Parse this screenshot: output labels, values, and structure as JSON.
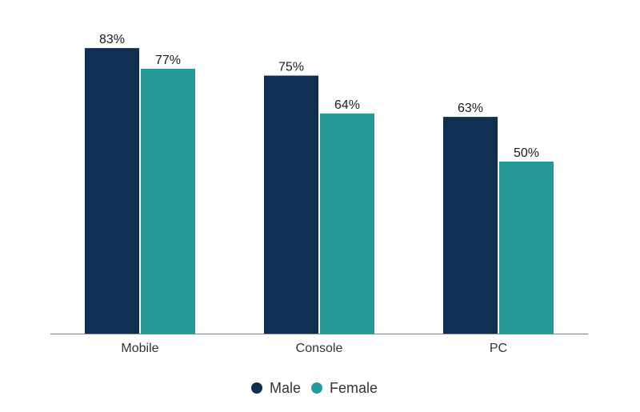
{
  "chart_data": {
    "type": "bar",
    "categories": [
      "Mobile",
      "Console",
      "PC"
    ],
    "series": [
      {
        "name": "Male",
        "values": [
          83,
          75,
          63
        ],
        "color": "#0f3052"
      },
      {
        "name": "Female",
        "values": [
          77,
          64,
          50
        ],
        "color": "#279b9b"
      }
    ],
    "data_labels": [
      [
        "83%",
        "75%",
        "63%"
      ],
      [
        "77%",
        "64%",
        "50%"
      ]
    ],
    "ylim": [
      0,
      100
    ],
    "grid": false,
    "legend_position": "bottom-center",
    "axis_color": "#7f7f7f"
  }
}
